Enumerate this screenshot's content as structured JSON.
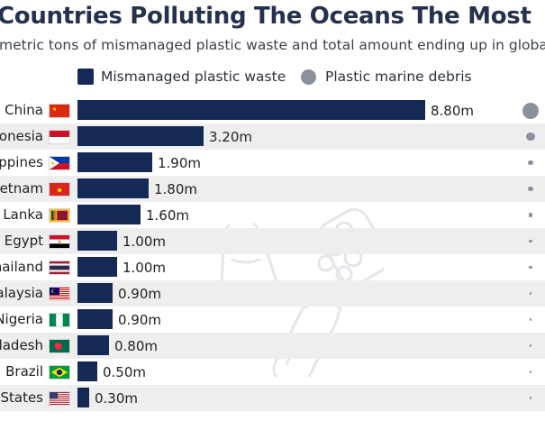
{
  "chart_data": {
    "type": "bar",
    "orientation": "horizontal",
    "title": "Countries Polluting The Oceans The Most",
    "subtitle": "metric tons of mismanaged plastic waste and total amount ending up in global",
    "legend": [
      {
        "label": "Mismanaged plastic waste",
        "marker": "square",
        "color": "#142a55"
      },
      {
        "label": "Plastic marine debris",
        "marker": "circle",
        "color": "#8a919d"
      }
    ],
    "legend_position": "top",
    "categories": [
      "China",
      "onesia",
      "ppines",
      "etnam",
      "Lanka",
      "Egypt",
      "hailand",
      "alaysia",
      "Nigeria",
      "ladesh",
      "Brazil",
      "States"
    ],
    "series": [
      {
        "name": "Mismanaged plastic waste",
        "values": [
          8.8,
          3.2,
          1.9,
          1.8,
          1.6,
          1.0,
          1.0,
          0.9,
          0.9,
          0.8,
          0.5,
          0.3
        ],
        "labels": [
          "8.80m",
          "3.20m",
          "1.90m",
          "1.80m",
          "1.60m",
          "1.00m",
          "1.00m",
          "0.90m",
          "0.90m",
          "0.80m",
          "0.50m",
          "0.30m"
        ]
      },
      {
        "name": "Plastic marine debris",
        "relative_size": [
          1.0,
          0.52,
          0.3,
          0.29,
          0.26,
          0.17,
          0.17,
          0.15,
          0.15,
          0.14,
          0.09,
          0.06
        ]
      }
    ],
    "xlim": [
      0,
      8.8
    ],
    "grid": false
  },
  "flags": [
    {
      "country": "China",
      "icon": "china-flag-icon"
    },
    {
      "country": "Indonesia",
      "icon": "indonesia-flag-icon"
    },
    {
      "country": "Philippines",
      "icon": "philippines-flag-icon"
    },
    {
      "country": "Vietnam",
      "icon": "vietnam-flag-icon"
    },
    {
      "country": "Sri Lanka",
      "icon": "sri-lanka-flag-icon"
    },
    {
      "country": "Egypt",
      "icon": "egypt-flag-icon"
    },
    {
      "country": "Thailand",
      "icon": "thailand-flag-icon"
    },
    {
      "country": "Malaysia",
      "icon": "malaysia-flag-icon"
    },
    {
      "country": "Nigeria",
      "icon": "nigeria-flag-icon"
    },
    {
      "country": "Bangladesh",
      "icon": "bangladesh-flag-icon"
    },
    {
      "country": "Brazil",
      "icon": "brazil-flag-icon"
    },
    {
      "country": "United States",
      "icon": "usa-flag-icon"
    }
  ],
  "decoration": [
    "plastic-bag-icon",
    "six-pack-rings-icon",
    "plastic-bottle-icon"
  ],
  "colors": {
    "bar": "#142a55",
    "dot": "#8a919d",
    "row_stripe": "#eeeeee"
  }
}
